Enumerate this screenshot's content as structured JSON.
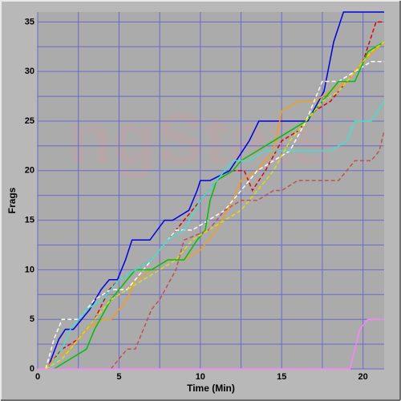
{
  "chart_data": {
    "type": "line",
    "watermark": "ngStats",
    "x_label": "Time (Min)",
    "y_label": "Frags",
    "xlim": [
      0,
      21.3
    ],
    "ylim": [
      0,
      36
    ],
    "xticks": [
      0,
      5,
      10,
      15,
      20
    ],
    "yticks": [
      0,
      5,
      10,
      15,
      20,
      25,
      30,
      35
    ],
    "x_minor_ticks": [
      2.5,
      7.5,
      12.5,
      17.5
    ],
    "y_minor_ticks": [
      2.5,
      7.5,
      12.5,
      17.5,
      22.5,
      27.5,
      32.5
    ],
    "grid": true,
    "grid_color": "#6a6ad0",
    "background": "#ababab",
    "series": [
      {
        "color": "#0000e0",
        "dashed": false,
        "x": [
          0.6,
          1.3,
          1.7,
          2.2,
          3.2,
          3.9,
          4.4,
          4.9,
          5.4,
          5.8,
          6.9,
          7.8,
          8.3,
          9.3,
          9.8,
          10.0,
          10.6,
          11.8,
          13.0,
          13.6,
          14.6,
          16.6,
          17.6,
          18.2,
          18.8,
          21.3
        ],
        "values": [
          0,
          3,
          4,
          4,
          6,
          8,
          9,
          9,
          11,
          13,
          13,
          15,
          15,
          16,
          18,
          19,
          19,
          20,
          23,
          25,
          25,
          25,
          28,
          33,
          36,
          36
        ]
      },
      {
        "color": "#e00000",
        "dashed": true,
        "x": [
          0.5,
          1.5,
          2.5,
          3.5,
          4.4,
          5.0,
          6.0,
          7.0,
          8.0,
          9.0,
          10.0,
          11.0,
          12.0,
          12.7,
          13.2,
          14.0,
          15.0,
          16.0,
          17.0,
          18.0,
          19.0,
          20.0,
          20.8,
          21.3
        ],
        "values": [
          0,
          2,
          3,
          5,
          8,
          9,
          10,
          11,
          13,
          15,
          17,
          19,
          20,
          20,
          18,
          20,
          23,
          24,
          26,
          27,
          29,
          31,
          35,
          35
        ]
      },
      {
        "color": "#f0a020",
        "dashed": false,
        "x": [
          0.5,
          1.0,
          2.0,
          3.0,
          4.0,
          4.5,
          5.5,
          6.0,
          7.0,
          8.0,
          9.0,
          10.0,
          11.0,
          12.0,
          12.5,
          13.5,
          14.5,
          15.0,
          16.0,
          17.0,
          18.0,
          19.0,
          20.0,
          21.3
        ],
        "values": [
          0,
          1,
          2,
          4,
          5,
          5,
          7,
          9,
          10,
          11,
          11,
          12,
          14,
          17,
          19,
          20,
          22,
          26,
          27,
          27,
          28,
          29,
          31,
          33
        ]
      },
      {
        "color": "#ffffff",
        "dashed": true,
        "x": [
          0.5,
          1.0,
          1.5,
          2.5,
          3.5,
          4.5,
          5.5,
          6.5,
          7.5,
          8.5,
          9.5,
          10.5,
          11.5,
          12.5,
          13.5,
          14.5,
          15.5,
          16.5,
          17.5,
          18.5,
          19.5,
          20.5,
          21.3
        ],
        "values": [
          0,
          3,
          5,
          5,
          7,
          8,
          8,
          10,
          12,
          14,
          14,
          15,
          16,
          18,
          20,
          21,
          22,
          25,
          29,
          29,
          30,
          31,
          31
        ]
      },
      {
        "color": "#00c000",
        "dashed": false,
        "x": [
          1.0,
          2.0,
          3.0,
          3.5,
          4.5,
          5.5,
          6.0,
          7.0,
          8.0,
          9.0,
          9.8,
          10.3,
          10.6,
          11.0,
          12.0,
          12.5,
          13.5,
          14.5,
          15.5,
          16.5,
          17.5,
          18.5,
          19.5,
          20.3,
          21.3
        ],
        "values": [
          0,
          1,
          2,
          4,
          7,
          9,
          10,
          10,
          11,
          11,
          13,
          14,
          17,
          19,
          20,
          21,
          22,
          23,
          24,
          25,
          27,
          29,
          29,
          32,
          33
        ]
      },
      {
        "color": "#40e0d0",
        "dashed": false,
        "x": [
          0.8,
          1.5,
          2.0,
          3.0,
          4.0,
          5.0,
          6.0,
          7.0,
          8.0,
          9.0,
          10.0,
          11.0,
          12.0,
          13.0,
          14.0,
          15.0,
          16.0,
          17.0,
          18.0,
          19.0,
          19.5,
          20.5,
          21.3
        ],
        "values": [
          0,
          2,
          4,
          6,
          7,
          9,
          10,
          11,
          13,
          14,
          17,
          19,
          21,
          21,
          22,
          22,
          22,
          22,
          22,
          23,
          25,
          25,
          27
        ]
      },
      {
        "color": "#c05050",
        "dashed": true,
        "x": [
          4.5,
          5.5,
          6.0,
          7.0,
          7.5,
          8.5,
          9.0,
          10.5,
          11.5,
          12.5,
          13.5,
          14.5,
          15.0,
          16.0,
          17.0,
          18.0,
          18.5,
          19.5,
          20.5,
          21.0,
          21.3
        ],
        "values": [
          0,
          2,
          2,
          6,
          7,
          10,
          13,
          14,
          16,
          17,
          17,
          18,
          18,
          19,
          19,
          19,
          19,
          21,
          21,
          22,
          24
        ]
      },
      {
        "color": "#ff80ff",
        "dashed": false,
        "x": [
          0,
          19.2,
          19.8,
          20.3,
          21.3
        ],
        "values": [
          0,
          0,
          4,
          5,
          5
        ]
      },
      {
        "color": "#e0e000",
        "dashed": true,
        "x": [
          0.5,
          1.5,
          2.5,
          3.5,
          4.5,
          5.5,
          6.5,
          7.5,
          8.5,
          9.5,
          10.5,
          11.5,
          12.5,
          13.5,
          14.5,
          15.5,
          16.5,
          17.5,
          18.5,
          19.5,
          20.5,
          21.3
        ],
        "values": [
          0,
          1,
          3,
          5,
          7,
          8,
          9,
          10,
          11,
          13,
          14,
          15,
          16,
          18,
          20,
          23,
          25,
          27,
          28,
          30,
          32,
          33
        ]
      }
    ]
  }
}
